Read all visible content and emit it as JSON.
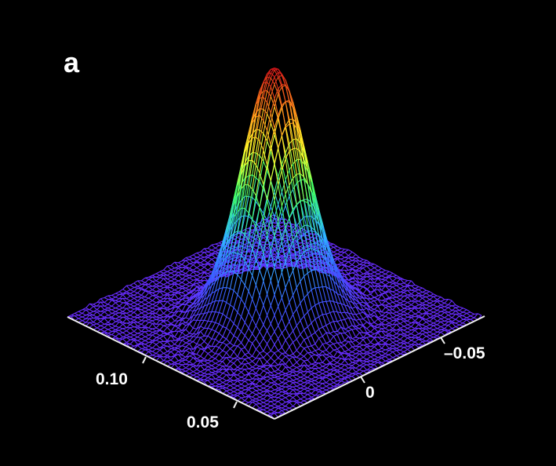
{
  "panel_label": "a",
  "chart_data": {
    "type": "surface",
    "title": "",
    "xlabel": "",
    "ylabel": "",
    "zlabel": "",
    "x_axis": {
      "ticks": [
        0.05,
        0.1
      ],
      "tick_labels": [
        "0.05",
        "0.10"
      ],
      "range": [
        0.02,
        0.13
      ]
    },
    "y_axis": {
      "ticks": [
        0,
        -0.05
      ],
      "tick_labels": [
        "0",
        "–0.05"
      ],
      "range": [
        0.03,
        -0.07
      ]
    },
    "surface": {
      "shape": "gaussian-peak",
      "peak_center": {
        "x": 0.075,
        "y": -0.02
      },
      "peak_height": 1.0,
      "width": 0.012,
      "baseline": 0.0,
      "noise": 0.02
    },
    "colormap": [
      "#6a2cff",
      "#3a5bff",
      "#2fb8ff",
      "#3cff6a",
      "#ffff2a",
      "#ff8a1a",
      "#d4101a"
    ],
    "grid": false
  }
}
